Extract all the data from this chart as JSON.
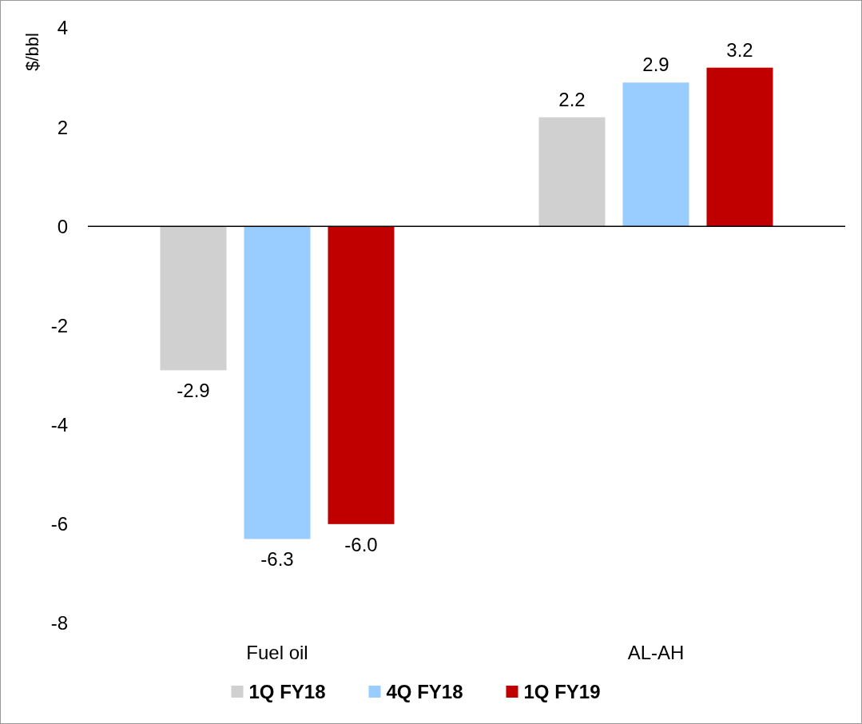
{
  "chart_data": {
    "type": "bar",
    "ylabel": "$/bbl",
    "categories": [
      "Fuel oil",
      "AL-AH"
    ],
    "series": [
      {
        "name": "1Q FY18",
        "color": "#d0d0d0",
        "values": [
          -2.9,
          2.2
        ],
        "value_labels": [
          "-2.9",
          "2.2"
        ]
      },
      {
        "name": "4Q FY18",
        "color": "#99ccff",
        "values": [
          -6.3,
          2.9
        ],
        "value_labels": [
          "-6.3",
          "2.9"
        ]
      },
      {
        "name": "1Q FY19",
        "color": "#c00000",
        "values": [
          -6.0,
          3.2
        ],
        "value_labels": [
          "-6.0",
          "3.2"
        ]
      }
    ],
    "ylim": [
      -8,
      4
    ],
    "yticks": [
      -8,
      -6,
      -4,
      -2,
      0,
      2,
      4
    ],
    "legend": "bottom"
  }
}
